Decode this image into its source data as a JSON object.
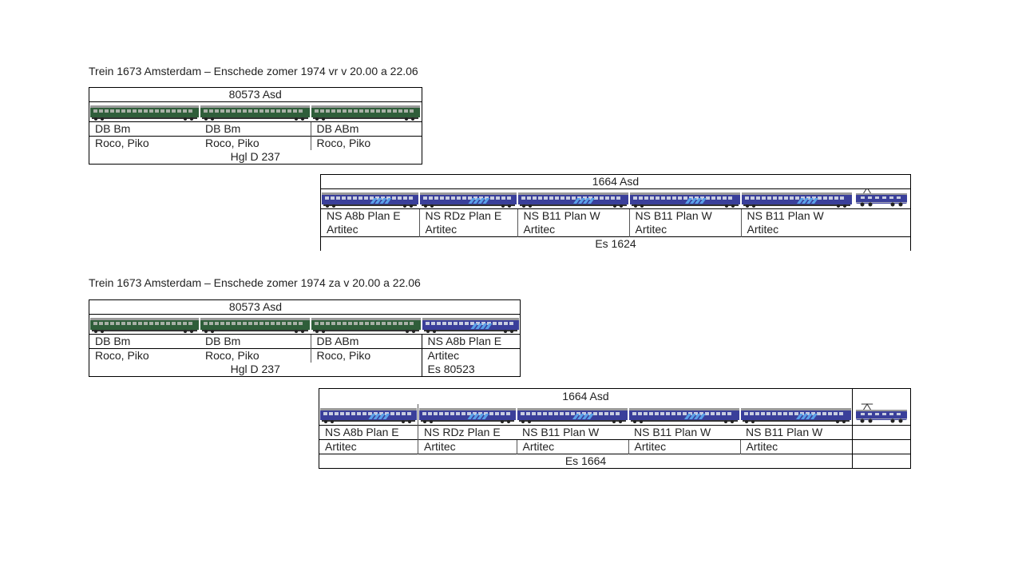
{
  "sections": [
    {
      "title": "Trein 1673 Amsterdam – Enschede zomer 1974 vr v 20.00 a 22.06",
      "upper": {
        "header": "80573 Asd",
        "cars": [
          {
            "type": "DB Bm",
            "maker": "Roco, Piko",
            "livery": "green-db"
          },
          {
            "type": "DB Bm",
            "maker": "Roco, Piko",
            "livery": "green-db"
          },
          {
            "type": "DB ABm",
            "maker": "Roco, Piko",
            "livery": "green-db"
          }
        ],
        "footer": "Hgl D 237"
      },
      "lower": {
        "header": "1664 Asd",
        "cars": [
          {
            "type": "NS A8b Plan E",
            "maker": "Artitec",
            "livery": "blue-ns"
          },
          {
            "type": "NS RDz Plan E",
            "maker": "Artitec",
            "livery": "blue-ns"
          },
          {
            "type": "NS B11 Plan W",
            "maker": "Artitec",
            "livery": "blue-ns"
          },
          {
            "type": "NS B11 Plan W",
            "maker": "Artitec",
            "livery": "blue-ns"
          },
          {
            "type": "NS B11 Plan W",
            "maker": "Artitec",
            "livery": "blue-ns"
          }
        ],
        "locomotive": "electric-locomotive-1600",
        "footer": "Es 1624"
      }
    },
    {
      "title": "Trein 1673 Amsterdam – Enschede zomer 1974 za v 20.00 a 22.06",
      "upper": {
        "header": "80573 Asd",
        "cars": [
          {
            "type": "DB Bm",
            "maker": "Roco, Piko",
            "livery": "green-db"
          },
          {
            "type": "DB Bm",
            "maker": "Roco, Piko",
            "livery": "green-db"
          },
          {
            "type": "DB ABm",
            "maker": "Roco, Piko",
            "livery": "green-db"
          }
        ],
        "footer": "Hgl D 237",
        "extra": {
          "type": "NS A8b Plan E",
          "maker": "Artitec",
          "footer": "Es 80523",
          "livery": "blue-ns"
        }
      },
      "lower": {
        "header": "1664 Asd",
        "cars": [
          {
            "type": "NS A8b Plan E",
            "maker": "Artitec",
            "livery": "blue-ns"
          },
          {
            "type": "NS RDz Plan E",
            "maker": "Artitec",
            "livery": "blue-ns"
          },
          {
            "type": "NS B11 Plan W",
            "maker": "Artitec",
            "livery": "blue-ns"
          },
          {
            "type": "NS B11 Plan W",
            "maker": "Artitec",
            "livery": "blue-ns"
          },
          {
            "type": "NS B11 Plan W",
            "maker": "Artitec",
            "livery": "blue-ns"
          }
        ],
        "locomotive": "electric-locomotive-1600",
        "footer": "Es 1664"
      }
    }
  ],
  "colors": {
    "green_body": "#2f5e3a",
    "green_window_band": "#a8b0a6",
    "blue_body": "#3a3f9a",
    "blue_stripe": "#5aa0e8",
    "roof_gray": "#9a9a9a",
    "line": "#000000"
  }
}
